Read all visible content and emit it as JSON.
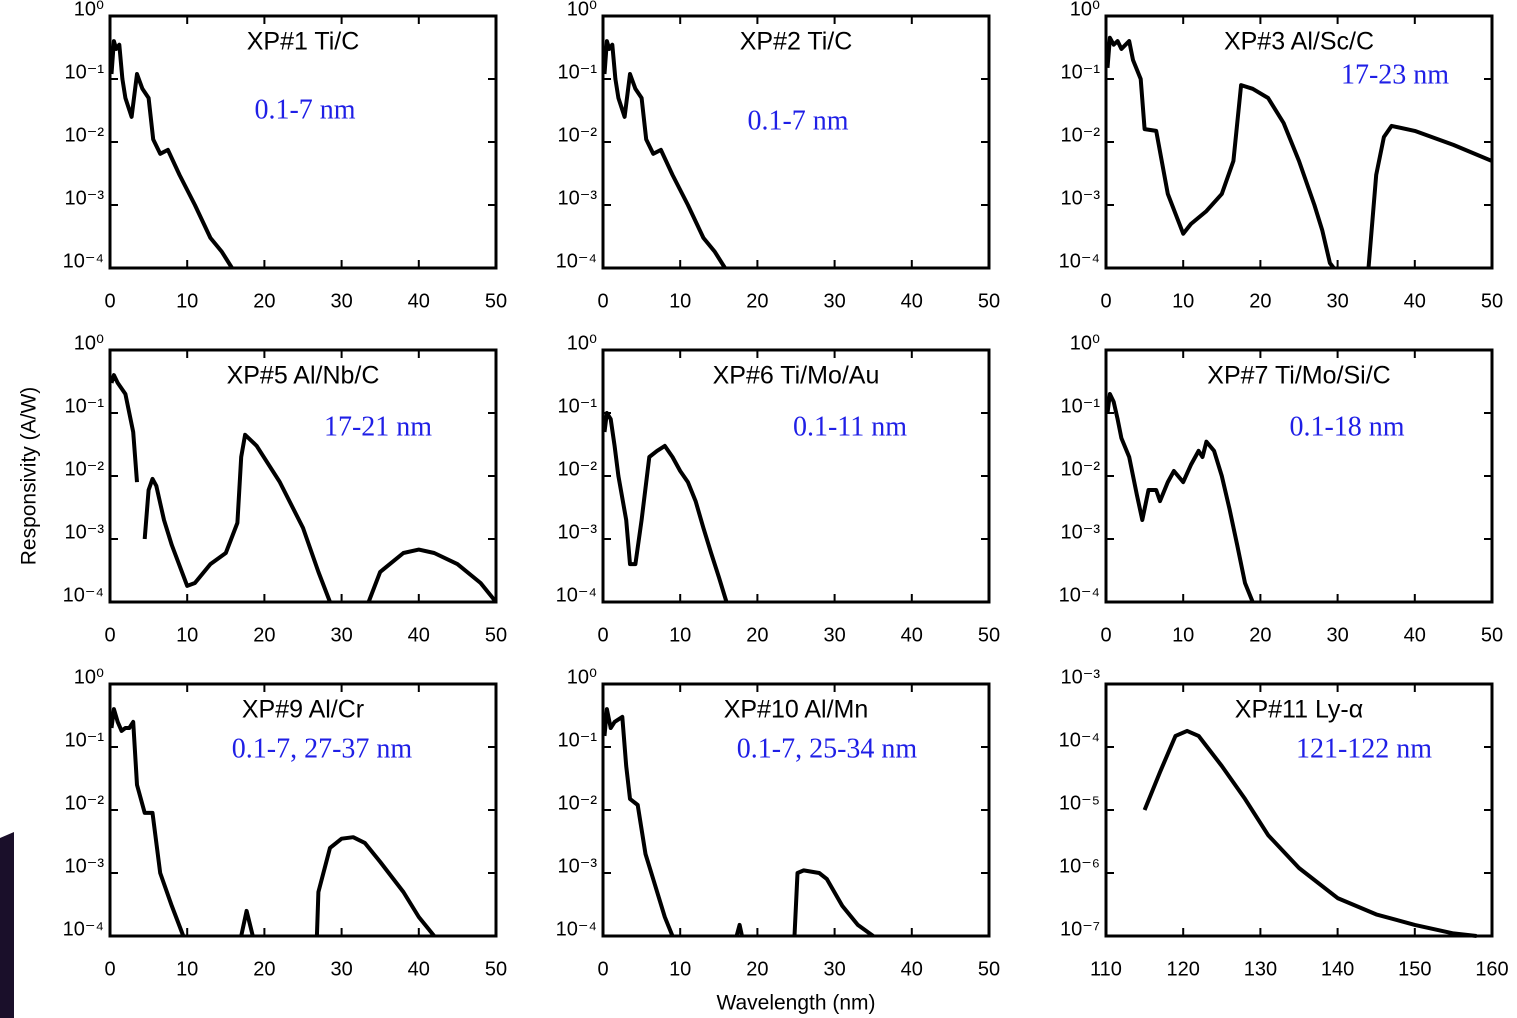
{
  "ylabel": "Responsivity (A/W)",
  "xlabel": "Wavelength (nm)",
  "chart_data": [
    {
      "type": "line",
      "title": "XP#1 Ti/C",
      "annotation": "0.1-7 nm",
      "annotation_color": "#1f1fe6",
      "log_y": true,
      "x": [
        0.2,
        0.5,
        0.8,
        1.2,
        1.6,
        2,
        2.8,
        3.5,
        4.2,
        5,
        5.6,
        6.5,
        7.5,
        9,
        11,
        13,
        14.5,
        15.8
      ],
      "series": [
        {
          "color": "#000000",
          "values": [
            0.12,
            0.4,
            0.3,
            0.35,
            0.1,
            0.05,
            0.025,
            0.12,
            0.07,
            0.05,
            0.011,
            0.0065,
            0.0075,
            0.003,
            0.001,
            0.0003,
            0.00018,
            0.0001
          ]
        }
      ],
      "xlim": [
        0,
        50
      ],
      "xticks": [
        0,
        10,
        20,
        30,
        40,
        50
      ],
      "ylim": [
        0.0001,
        1
      ],
      "yticks": [
        {
          "value": 0.0001,
          "label": "10⁻⁴"
        },
        {
          "value": 0.001,
          "label": "10⁻³"
        },
        {
          "value": 0.01,
          "label": "10⁻²"
        },
        {
          "value": 0.1,
          "label": "10⁻¹"
        },
        {
          "value": 1,
          "label": "10⁰"
        }
      ]
    },
    {
      "type": "line",
      "title": "XP#2 Ti/C",
      "annotation": "0.1-7 nm",
      "annotation_color": "#1f1fe6",
      "log_y": true,
      "x": [
        0.2,
        0.5,
        0.8,
        1.2,
        1.6,
        2,
        2.8,
        3.5,
        4.2,
        5,
        5.6,
        6.5,
        7.5,
        9,
        11,
        13,
        14.5,
        15.8
      ],
      "series": [
        {
          "color": "#000000",
          "values": [
            0.12,
            0.4,
            0.3,
            0.35,
            0.1,
            0.05,
            0.025,
            0.12,
            0.07,
            0.05,
            0.011,
            0.0065,
            0.0075,
            0.003,
            0.001,
            0.0003,
            0.00018,
            0.0001
          ]
        }
      ],
      "xlim": [
        0,
        50
      ],
      "xticks": [
        0,
        10,
        20,
        30,
        40,
        50
      ],
      "ylim": [
        0.0001,
        1
      ],
      "yticks": [
        {
          "value": 0.0001,
          "label": "10⁻⁴"
        },
        {
          "value": 0.001,
          "label": "10⁻³"
        },
        {
          "value": 0.01,
          "label": "10⁻²"
        },
        {
          "value": 0.1,
          "label": "10⁻¹"
        },
        {
          "value": 1,
          "label": "10⁰"
        }
      ]
    },
    {
      "type": "line",
      "title": "XP#3 Al/Sc/C",
      "annotation": "17-23 nm",
      "annotation_color": "#1f1fe6",
      "log_y": true,
      "x": [
        0.2,
        0.5,
        1,
        1.5,
        2,
        3,
        3.5,
        4.5,
        5,
        6.5,
        8,
        10,
        11,
        13,
        15,
        16.5,
        17.5,
        19,
        21,
        23,
        25,
        27,
        28,
        29,
        29.5,
        30,
        34,
        35,
        36,
        37,
        40,
        45,
        50
      ],
      "series": [
        {
          "color": "#000000",
          "values": [
            0.15,
            0.45,
            0.35,
            0.4,
            0.3,
            0.4,
            0.2,
            0.1,
            0.016,
            0.015,
            0.0015,
            0.00035,
            0.0005,
            0.0008,
            0.0015,
            0.005,
            0.08,
            0.07,
            0.05,
            0.02,
            0.005,
            0.001,
            0.0004,
            0.00012,
            0.0001,
            null,
            0.0001,
            0.003,
            0.012,
            0.018,
            0.015,
            0.009,
            0.005
          ]
        }
      ],
      "xlim": [
        0,
        50
      ],
      "xticks": [
        0,
        10,
        20,
        30,
        40,
        50
      ],
      "ylim": [
        0.0001,
        1
      ],
      "yticks": [
        {
          "value": 0.0001,
          "label": "10⁻⁴"
        },
        {
          "value": 0.001,
          "label": "10⁻³"
        },
        {
          "value": 0.01,
          "label": "10⁻²"
        },
        {
          "value": 0.1,
          "label": "10⁻¹"
        },
        {
          "value": 1,
          "label": "10⁰"
        }
      ]
    },
    {
      "type": "line",
      "title": "XP#5 Al/Nb/C",
      "annotation": "17-21 nm",
      "annotation_color": "#1f1fe6",
      "log_y": true,
      "x": [
        0.2,
        0.5,
        1,
        2,
        3,
        3.5,
        4,
        4.5,
        5,
        5.5,
        6,
        7,
        8,
        10,
        11,
        13,
        15,
        16.5,
        17,
        17.5,
        19,
        22,
        25,
        27,
        28.5,
        31,
        33.5,
        35,
        38,
        40,
        42,
        45,
        48,
        50
      ],
      "series": [
        {
          "color": "#000000",
          "values": [
            0.3,
            0.4,
            0.3,
            0.2,
            0.05,
            0.008,
            null,
            0.001,
            0.006,
            0.009,
            0.007,
            0.002,
            0.0008,
            0.00018,
            0.0002,
            0.0004,
            0.0006,
            0.0018,
            0.02,
            0.045,
            0.03,
            0.008,
            0.0015,
            0.0003,
            0.0001,
            null,
            0.0001,
            0.0003,
            0.0006,
            0.00068,
            0.0006,
            0.0004,
            0.0002,
            0.0001
          ]
        }
      ],
      "xlim": [
        0,
        50
      ],
      "xticks": [
        0,
        10,
        20,
        30,
        40,
        50
      ],
      "ylim": [
        0.0001,
        1
      ],
      "yticks": [
        {
          "value": 0.0001,
          "label": "10⁻⁴"
        },
        {
          "value": 0.001,
          "label": "10⁻³"
        },
        {
          "value": 0.01,
          "label": "10⁻²"
        },
        {
          "value": 0.1,
          "label": "10⁻¹"
        },
        {
          "value": 1,
          "label": "10⁰"
        }
      ]
    },
    {
      "type": "line",
      "title": "XP#6 Ti/Mo/Au",
      "annotation": "0.1-11 nm",
      "annotation_color": "#1f1fe6",
      "log_y": true,
      "x": [
        0.2,
        0.5,
        1,
        1.5,
        2,
        3,
        3.5,
        4.2,
        5,
        6,
        7,
        8,
        9,
        10,
        11,
        12,
        13,
        14,
        15,
        16
      ],
      "series": [
        {
          "color": "#000000",
          "values": [
            0.05,
            0.1,
            0.08,
            0.03,
            0.01,
            0.002,
            0.0004,
            0.0004,
            0.002,
            0.02,
            0.025,
            0.03,
            0.02,
            0.012,
            0.008,
            0.004,
            0.0015,
            0.0006,
            0.00025,
            0.0001
          ]
        }
      ],
      "xlim": [
        0,
        50
      ],
      "xticks": [
        0,
        10,
        20,
        30,
        40,
        50
      ],
      "ylim": [
        0.0001,
        1
      ],
      "yticks": [
        {
          "value": 0.0001,
          "label": "10⁻⁴"
        },
        {
          "value": 0.001,
          "label": "10⁻³"
        },
        {
          "value": 0.01,
          "label": "10⁻²"
        },
        {
          "value": 0.1,
          "label": "10⁻¹"
        },
        {
          "value": 1,
          "label": "10⁰"
        }
      ]
    },
    {
      "type": "line",
      "title": "XP#7 Ti/Mo/Si/C",
      "annotation": "0.1-18 nm",
      "annotation_color": "#1f1fe6",
      "log_y": true,
      "x": [
        0.2,
        0.5,
        1,
        1.5,
        2,
        3,
        4,
        4.7,
        5.5,
        6.5,
        7,
        8,
        8.8,
        10,
        11,
        12,
        12.5,
        13,
        14,
        15,
        16,
        17,
        18,
        19
      ],
      "series": [
        {
          "color": "#000000",
          "values": [
            0.1,
            0.2,
            0.15,
            0.08,
            0.04,
            0.02,
            0.005,
            0.002,
            0.006,
            0.006,
            0.004,
            0.008,
            0.012,
            0.008,
            0.015,
            0.025,
            0.02,
            0.035,
            0.025,
            0.01,
            0.003,
            0.0008,
            0.0002,
            0.0001
          ]
        }
      ],
      "xlim": [
        0,
        50
      ],
      "xticks": [
        0,
        10,
        20,
        30,
        40,
        50
      ],
      "ylim": [
        0.0001,
        1
      ],
      "yticks": [
        {
          "value": 0.0001,
          "label": "10⁻⁴"
        },
        {
          "value": 0.001,
          "label": "10⁻³"
        },
        {
          "value": 0.01,
          "label": "10⁻²"
        },
        {
          "value": 0.1,
          "label": "10⁻¹"
        },
        {
          "value": 1,
          "label": "10⁰"
        }
      ]
    },
    {
      "type": "line",
      "title": "XP#9 Al/Cr",
      "annotation": "0.1-7, 27-37 nm",
      "annotation_color": "#1f1fe6",
      "log_y": true,
      "x": [
        0.2,
        0.5,
        1,
        1.5,
        2,
        2.5,
        3,
        3.5,
        4.5,
        5.5,
        6.5,
        8,
        9.5,
        13,
        17,
        17.7,
        18.5,
        22,
        26.8,
        27,
        28.5,
        30,
        31.5,
        33,
        35,
        38,
        40,
        42
      ],
      "series": [
        {
          "color": "#000000",
          "values": [
            0.2,
            0.4,
            0.25,
            0.18,
            0.2,
            0.2,
            0.25,
            0.025,
            0.009,
            0.009,
            0.001,
            0.0003,
            0.0001,
            null,
            0.0001,
            0.00025,
            0.0001,
            null,
            0.0001,
            0.0005,
            0.0025,
            0.0035,
            0.0037,
            0.003,
            0.0015,
            0.0005,
            0.0002,
            0.0001
          ]
        }
      ],
      "xlim": [
        0,
        50
      ],
      "xticks": [
        0,
        10,
        20,
        30,
        40,
        50
      ],
      "ylim": [
        0.0001,
        1
      ],
      "yticks": [
        {
          "value": 0.0001,
          "label": "10⁻⁴"
        },
        {
          "value": 0.001,
          "label": "10⁻³"
        },
        {
          "value": 0.01,
          "label": "10⁻²"
        },
        {
          "value": 0.1,
          "label": "10⁻¹"
        },
        {
          "value": 1,
          "label": "10⁰"
        }
      ]
    },
    {
      "type": "line",
      "title": "XP#10 Al/Mn",
      "annotation": "0.1-7, 25-34 nm",
      "annotation_color": "#1f1fe6",
      "log_y": true,
      "x": [
        0.2,
        0.5,
        1,
        1.5,
        2.5,
        3,
        3.5,
        4.5,
        5.5,
        6.5,
        8,
        9,
        13,
        17.3,
        17.7,
        18,
        21,
        24.8,
        25.2,
        26,
        28,
        29,
        31,
        33,
        35
      ],
      "series": [
        {
          "color": "#000000",
          "values": [
            0.15,
            0.4,
            0.2,
            0.25,
            0.3,
            0.05,
            0.015,
            0.012,
            0.002,
            0.0008,
            0.0002,
            0.0001,
            null,
            0.0001,
            0.00015,
            0.0001,
            null,
            0.0001,
            0.001,
            0.0011,
            0.001,
            0.0008,
            0.0003,
            0.00015,
            0.0001
          ]
        }
      ],
      "xlim": [
        0,
        50
      ],
      "xticks": [
        0,
        10,
        20,
        30,
        40,
        50
      ],
      "ylim": [
        0.0001,
        1
      ],
      "yticks": [
        {
          "value": 0.0001,
          "label": "10⁻⁴"
        },
        {
          "value": 0.001,
          "label": "10⁻³"
        },
        {
          "value": 0.01,
          "label": "10⁻²"
        },
        {
          "value": 0.1,
          "label": "10⁻¹"
        },
        {
          "value": 1,
          "label": "10⁰"
        }
      ]
    },
    {
      "type": "line",
      "title": "XP#11 Ly-α",
      "annotation": "121-122 nm",
      "annotation_color": "#1f1fe6",
      "log_y": true,
      "x": [
        115,
        117,
        119,
        120.5,
        122,
        125,
        128,
        131,
        135,
        140,
        145,
        150,
        155,
        158
      ],
      "series": [
        {
          "color": "#000000",
          "values": [
            1e-05,
            4e-05,
            0.00015,
            0.00018,
            0.00015,
            5e-05,
            1.5e-05,
            4e-06,
            1.2e-06,
            4e-07,
            2.2e-07,
            1.5e-07,
            1.1e-07,
            1e-07
          ]
        }
      ],
      "xlim": [
        110,
        160
      ],
      "xticks": [
        110,
        120,
        130,
        140,
        150,
        160
      ],
      "ylim": [
        1e-07,
        0.001
      ],
      "yticks": [
        {
          "value": 1e-07,
          "label": "10⁻⁷"
        },
        {
          "value": 1e-06,
          "label": "10⁻⁶"
        },
        {
          "value": 1e-05,
          "label": "10⁻⁵"
        },
        {
          "value": 0.0001,
          "label": "10⁻⁴"
        },
        {
          "value": 0.001,
          "label": "10⁻³"
        }
      ]
    }
  ]
}
